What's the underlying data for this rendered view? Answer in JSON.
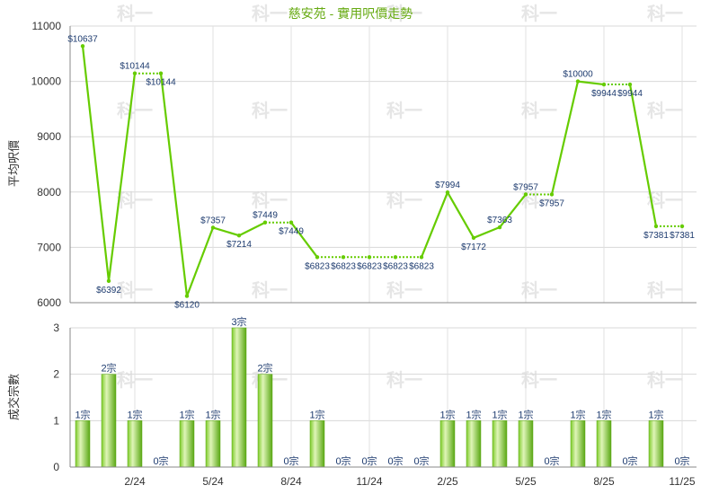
{
  "chart_data": [
    {
      "type": "line",
      "title": "慈安苑 - 實用呎價走勢",
      "ylabel": "平均呎價",
      "ylim": [
        6000,
        11000
      ],
      "yticks": [
        "11000",
        "10000",
        "9000",
        "8000",
        "7000",
        "6000"
      ],
      "values": [
        10637,
        6392,
        10144,
        10144,
        6120,
        7357,
        7214,
        7449,
        7449,
        6823,
        6823,
        6823,
        6823,
        6823,
        7994,
        7172,
        7363,
        7957,
        7957,
        10000,
        9944,
        9944,
        7381,
        7381
      ],
      "dotted_after": [
        2,
        7,
        9,
        10,
        11,
        12,
        17,
        20,
        22
      ],
      "labels": [
        "$10637",
        "$6392",
        "$10144",
        "$10144",
        "$6120",
        "$7357",
        "$7214",
        "$7449",
        "$7449",
        "$6823",
        "$6823",
        "$6823",
        "$6823",
        "$6823",
        "$7994",
        "$7172",
        "$7363",
        "$7957",
        "$7957",
        "$10000",
        "$9944",
        "$9944",
        "$7381",
        "$7381"
      ],
      "color": "#66cc00",
      "grid": true
    },
    {
      "type": "bar",
      "ylabel": "成交宗數",
      "ylim": [
        0,
        3
      ],
      "yticks": [
        "3",
        "2",
        "1",
        "0"
      ],
      "values": [
        1,
        2,
        1,
        0,
        1,
        1,
        3,
        2,
        0,
        1,
        0,
        0,
        0,
        0,
        1,
        1,
        1,
        1,
        0,
        1,
        1,
        0,
        1,
        0
      ],
      "labels": [
        "1宗",
        "2宗",
        "1宗",
        "0宗",
        "1宗",
        "1宗",
        "3宗",
        "2宗",
        "0宗",
        "1宗",
        "0宗",
        "0宗",
        "0宗",
        "0宗",
        "1宗",
        "1宗",
        "1宗",
        "1宗",
        "0宗",
        "1宗",
        "1宗",
        "0宗",
        "1宗",
        "0宗"
      ],
      "xticks": [
        {
          "i": 2,
          "label": "2/24"
        },
        {
          "i": 5,
          "label": "5/24"
        },
        {
          "i": 8,
          "label": "8/24"
        },
        {
          "i": 11,
          "label": "11/24"
        },
        {
          "i": 14,
          "label": "2/25"
        },
        {
          "i": 17,
          "label": "5/25"
        },
        {
          "i": 20,
          "label": "8/25"
        },
        {
          "i": 23,
          "label": "11/25"
        }
      ],
      "color": "#66cc00",
      "grid": true
    }
  ],
  "watermark": "科一"
}
